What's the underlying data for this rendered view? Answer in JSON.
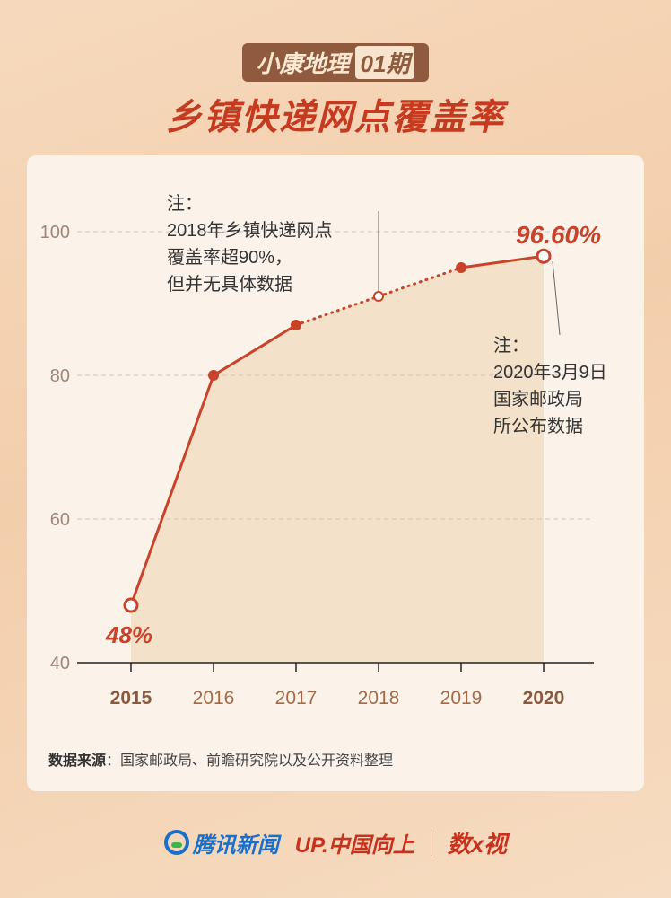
{
  "header": {
    "badge_label": "小康地理",
    "badge_issue": "01期",
    "title": "乡镇快递网点覆盖率"
  },
  "colors": {
    "line": "#c8432a",
    "area": "#f2ddc4",
    "axis_text": "#a0867a",
    "highlight_year": "#8a5a3e",
    "year_text": "#a46a48",
    "annotation": "#333333"
  },
  "chart_data": {
    "type": "line",
    "title": "乡镇快递网点覆盖率",
    "x": [
      "2015",
      "2016",
      "2017",
      "2018",
      "2019",
      "2020"
    ],
    "y": [
      48,
      80,
      87,
      91,
      95,
      96.6
    ],
    "dotted_segment": [
      "2017",
      "2019"
    ],
    "hollow_points": [
      "2015",
      "2018",
      "2020"
    ],
    "highlight_x": [
      "2015",
      "2020"
    ],
    "ylim": [
      40,
      100
    ],
    "yticks": [
      "40",
      "60",
      "80",
      "100"
    ],
    "grid": "horizontal-dashed",
    "data_labels": {
      "first": "48%",
      "last": "96.60%"
    },
    "annotations": {
      "note_2018": {
        "head": "注：",
        "lines": [
          "2018年乡镇快递网点",
          "覆盖率超90%，",
          "但并无具体数据"
        ]
      },
      "note_2020": {
        "head": "注：",
        "lines": [
          "2020年3月9日",
          "国家邮政局",
          "所公布数据"
        ]
      }
    }
  },
  "source": {
    "label": "数据来源",
    "text": "：国家邮政局、前瞻研究院以及公开资料整理"
  },
  "footer": {
    "tencent": "腾讯新闻",
    "up": "UP.中国向上",
    "shu": "数x视"
  }
}
